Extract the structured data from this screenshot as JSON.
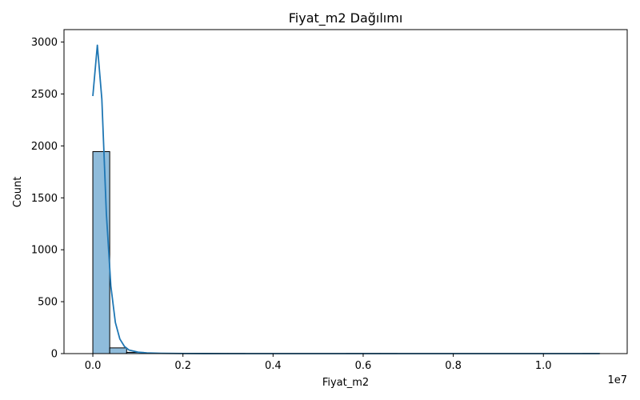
{
  "chart_data": {
    "type": "bar",
    "title": "Fiyat_m2 Dağılımı",
    "xlabel": "Fiyat_m2",
    "ylabel": "Count",
    "x_scale_label": "1e7",
    "xlim": [
      -640000,
      11860000
    ],
    "ylim": [
      0,
      3120
    ],
    "x_ticks": [
      0,
      2000000,
      4000000,
      6000000,
      8000000,
      10000000
    ],
    "x_tick_labels": [
      "0.0",
      "0.2",
      "0.4",
      "0.6",
      "0.8",
      "1.0"
    ],
    "y_ticks": [
      0,
      500,
      1000,
      1500,
      2000,
      2500,
      3000
    ],
    "y_tick_labels": [
      "0",
      "500",
      "1000",
      "1500",
      "2000",
      "2500",
      "3000"
    ],
    "bin_edges": [
      0,
      375000,
      750000,
      1125000,
      1500000,
      1875000,
      2250000,
      2625000,
      3000000,
      3375000,
      3750000,
      4125000,
      4500000,
      4875000,
      5250000,
      5625000,
      6000000,
      6375000,
      6750000,
      7125000,
      7500000,
      7875000,
      8250000,
      8625000,
      9000000,
      9375000,
      9750000,
      10125000,
      10500000,
      10875000,
      11250000
    ],
    "counts": [
      1945,
      55,
      12,
      4,
      2,
      1,
      1,
      1,
      1,
      0,
      0,
      0,
      0,
      0,
      0,
      1,
      1,
      1,
      0,
      0,
      0,
      0,
      0,
      0,
      0,
      0,
      0,
      0,
      0,
      1
    ],
    "kde": {
      "x": [
        0,
        100000,
        200000,
        300000,
        400000,
        500000,
        600000,
        700000,
        800000,
        1000000,
        1200000,
        1500000,
        2000000,
        3000000,
        4000000,
        5000000,
        6000000,
        7000000,
        8000000,
        9000000,
        10000000,
        11250000
      ],
      "y": [
        2480,
        2970,
        2450,
        1350,
        650,
        300,
        140,
        70,
        35,
        14,
        7,
        3,
        1,
        0,
        0,
        0,
        0,
        0,
        0,
        0,
        0,
        0
      ]
    },
    "colors": {
      "bar_fill": "#8fbcdb",
      "bar_edge": "#000000",
      "kde_line": "#1f77b4"
    },
    "grid": false,
    "legend": "none"
  }
}
